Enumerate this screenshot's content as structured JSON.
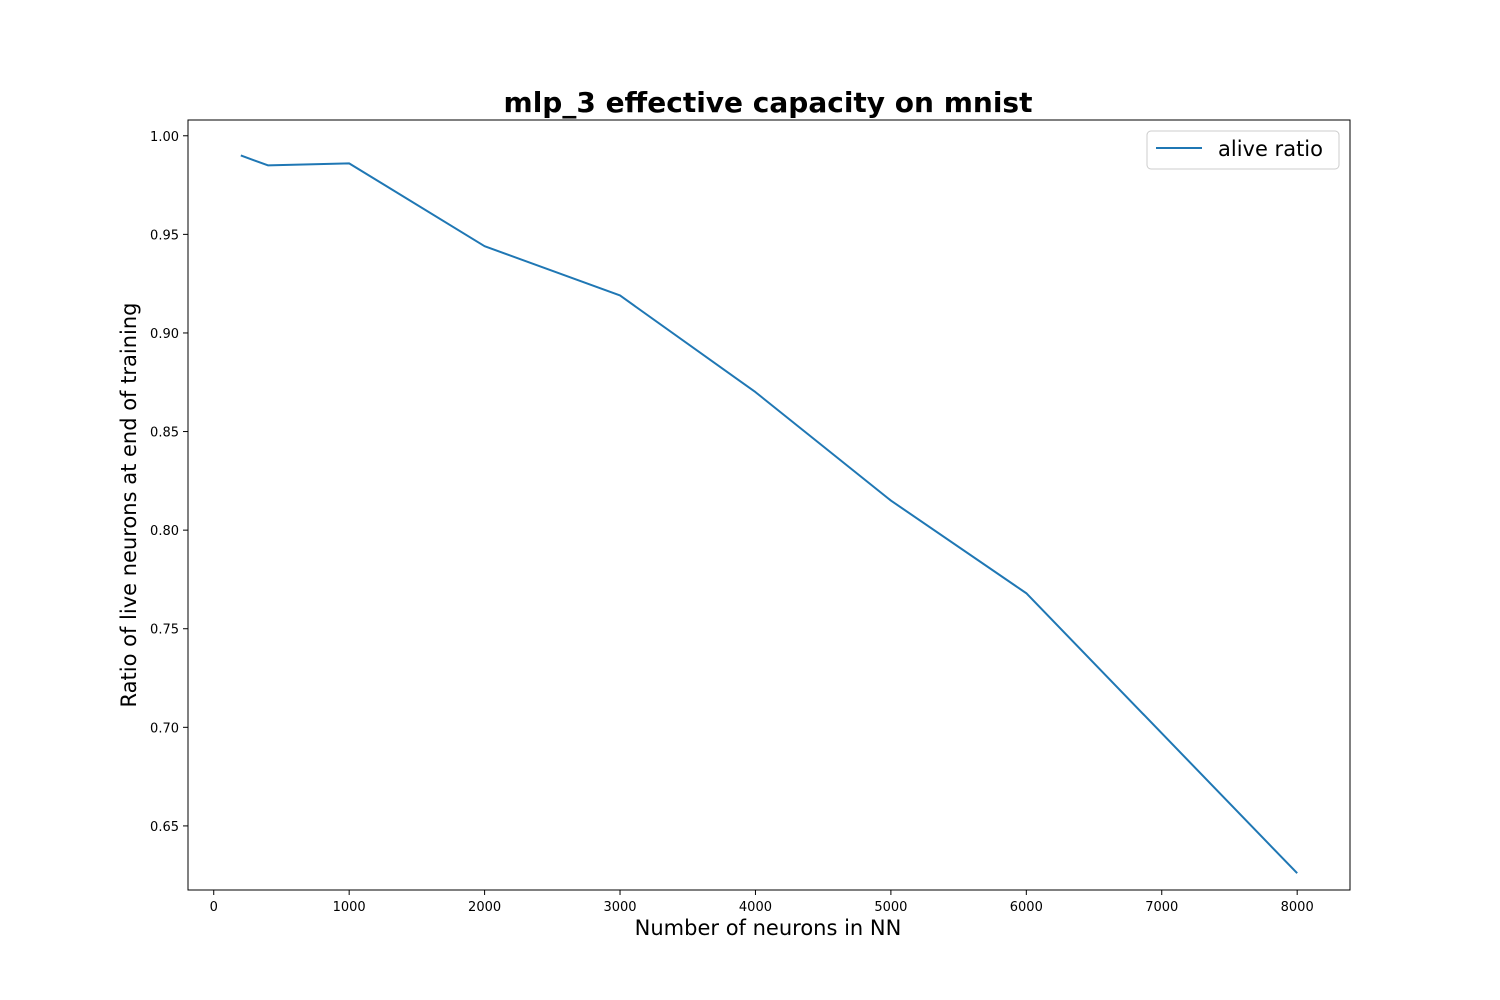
{
  "chart_data": {
    "type": "line",
    "title": "mlp_3 effective capacity on mnist",
    "xlabel": "Number of neurons in NN",
    "ylabel": "Ratio of live neurons at end of training",
    "xlim": [
      -190,
      8390
    ],
    "ylim": [
      0.6175,
      1.008
    ],
    "x_ticks": [
      0,
      1000,
      2000,
      3000,
      4000,
      5000,
      6000,
      7000,
      8000
    ],
    "y_ticks": [
      0.65,
      0.7,
      0.75,
      0.8,
      0.85,
      0.9,
      0.95,
      1.0
    ],
    "grid": false,
    "legend_position": "upper right",
    "series": [
      {
        "name": "alive ratio",
        "color": "#1f77b4",
        "x": [
          200,
          400,
          1000,
          2000,
          3000,
          4000,
          5000,
          6000,
          8000
        ],
        "y": [
          0.99,
          0.985,
          0.986,
          0.944,
          0.919,
          0.87,
          0.815,
          0.768,
          0.626
        ]
      }
    ]
  }
}
